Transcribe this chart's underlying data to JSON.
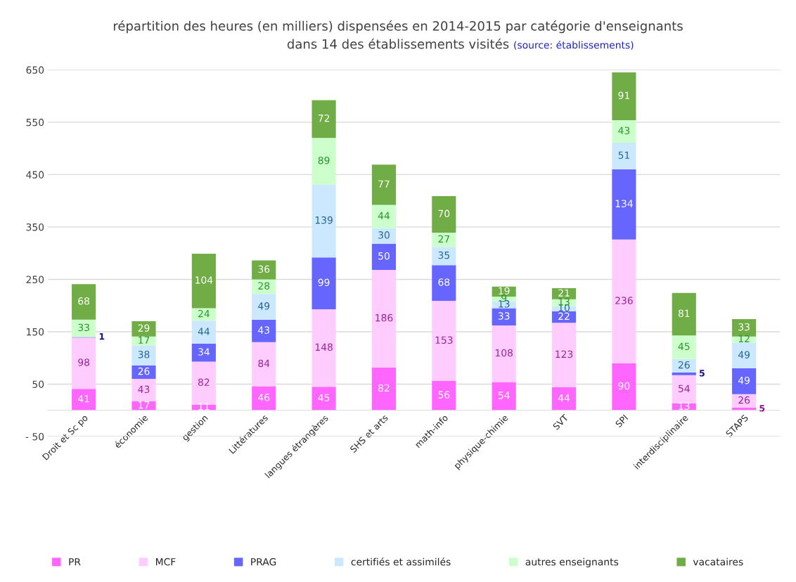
{
  "chart_data": {
    "type": "bar",
    "stacked": true,
    "title": "répartition des heures (en milliers) dispensées en 2014-2015 par catégorie d'enseignants\ndans 14 des établissements visités",
    "annotations": [
      "(source: établissements)"
    ],
    "categories": [
      "Droit et Sc po",
      "économie",
      "gestion",
      "Littératures",
      "langues étrangères",
      "SHS et arts",
      "math-info",
      "physique-chimie",
      "SVT",
      "SPI",
      "interdisciplinaire",
      "STAPS"
    ],
    "series": [
      {
        "name": "PR",
        "color": "#ff66ff",
        "values": [
          41,
          17,
          11,
          46,
          45,
          82,
          56,
          54,
          44,
          90,
          13,
          5
        ]
      },
      {
        "name": "MCF",
        "color": "#ffccff",
        "values": [
          98,
          43,
          82,
          84,
          148,
          186,
          153,
          108,
          123,
          236,
          54,
          26
        ]
      },
      {
        "name": "PRAG",
        "color": "#6666ff",
        "values": [
          1,
          26,
          34,
          43,
          99,
          50,
          68,
          33,
          22,
          134,
          5,
          49
        ]
      },
      {
        "name": "certifiés et assimilés",
        "color": "#cce8ff",
        "values": [
          null,
          38,
          44,
          49,
          139,
          30,
          35,
          13,
          10,
          51,
          26,
          49
        ]
      },
      {
        "name": "autres enseignants",
        "color": "#ccffcc",
        "values": [
          33,
          17,
          24,
          28,
          89,
          44,
          27,
          9,
          13,
          43,
          45,
          12
        ]
      },
      {
        "name": "vacataires",
        "color": "#70ad47",
        "values": [
          68,
          29,
          104,
          36,
          72,
          77,
          70,
          19,
          21,
          91,
          81,
          33
        ]
      }
    ],
    "ylim": [
      -50,
      650
    ],
    "yticks": [
      {
        "value": -50,
        "label": "- 50"
      },
      50,
      150,
      250,
      350,
      450,
      550,
      650
    ],
    "grid": "y",
    "legend": "bottom",
    "data_labels": true
  }
}
